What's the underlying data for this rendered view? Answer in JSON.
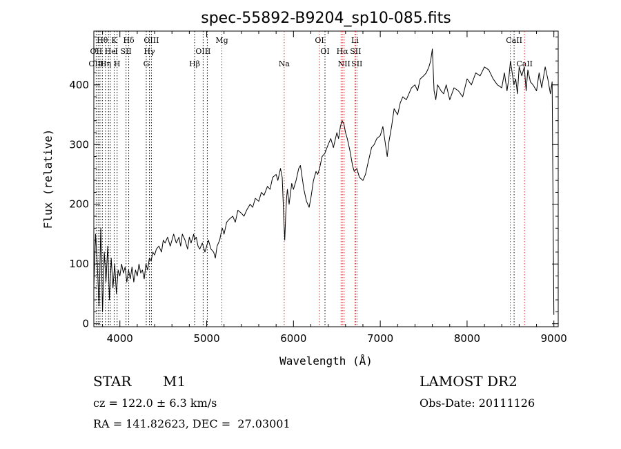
{
  "chart_data": {
    "type": "line",
    "title": "spec-55892-B9204_sp10-085.fits",
    "xlabel": "Wavelength (Å)",
    "ylabel": "Flux (relative)",
    "xlim": [
      3700,
      9050
    ],
    "ylim": [
      -5,
      490
    ],
    "xticks": [
      4000,
      5000,
      6000,
      7000,
      8000,
      9000
    ],
    "yticks": [
      0,
      100,
      200,
      300,
      400
    ],
    "grid": false,
    "series": [
      {
        "x": [
          3700,
          3720,
          3740,
          3760,
          3780,
          3800,
          3820,
          3840,
          3860,
          3880,
          3900,
          3920,
          3940,
          3960,
          3980,
          4000,
          4020,
          4040,
          4060,
          4080,
          4100,
          4120,
          4140,
          4160,
          4180,
          4200,
          4220,
          4240,
          4260,
          4280,
          4300,
          4320,
          4340,
          4360,
          4380,
          4400,
          4420,
          4450,
          4480,
          4500,
          4520,
          4550,
          4580,
          4600,
          4620,
          4650,
          4680,
          4700,
          4720,
          4750,
          4780,
          4800,
          4820,
          4850,
          4860,
          4880,
          4900,
          4920,
          4950,
          4980,
          5000,
          5020,
          5050,
          5080,
          5100,
          5120,
          5150,
          5170,
          5180,
          5200,
          5230,
          5260,
          5300,
          5330,
          5360,
          5400,
          5430,
          5460,
          5500,
          5530,
          5560,
          5600,
          5630,
          5660,
          5700,
          5730,
          5760,
          5800,
          5820,
          5850,
          5870,
          5880,
          5890,
          5900,
          5910,
          5920,
          5930,
          5950,
          5980,
          6000,
          6030,
          6060,
          6080,
          6100,
          6120,
          6150,
          6180,
          6200,
          6230,
          6260,
          6280,
          6300,
          6330,
          6360,
          6400,
          6430,
          6460,
          6500,
          6520,
          6540,
          6560,
          6580,
          6600,
          6620,
          6650,
          6680,
          6700,
          6730,
          6760,
          6800,
          6830,
          6860,
          6900,
          6930,
          6960,
          7000,
          7030,
          7060,
          7080,
          7100,
          7130,
          7160,
          7200,
          7230,
          7260,
          7300,
          7330,
          7360,
          7400,
          7430,
          7460,
          7500,
          7530,
          7560,
          7580,
          7600,
          7620,
          7640,
          7660,
          7700,
          7730,
          7760,
          7800,
          7850,
          7900,
          7950,
          8000,
          8050,
          8100,
          8150,
          8200,
          8250,
          8300,
          8350,
          8400,
          8430,
          8460,
          8480,
          8500,
          8520,
          8540,
          8560,
          8580,
          8600,
          8630,
          8660,
          8680,
          8700,
          8730,
          8760,
          8800,
          8830,
          8860,
          8900,
          8930,
          8960,
          8980,
          9000
        ],
        "values": [
          60,
          150,
          100,
          30,
          160,
          20,
          120,
          70,
          130,
          40,
          110,
          60,
          100,
          50,
          90,
          80,
          100,
          85,
          95,
          70,
          90,
          75,
          95,
          70,
          90,
          80,
          100,
          85,
          90,
          75,
          100,
          90,
          110,
          105,
          120,
          115,
          125,
          130,
          120,
          140,
          135,
          145,
          130,
          140,
          150,
          135,
          145,
          130,
          150,
          140,
          125,
          145,
          135,
          150,
          140,
          145,
          130,
          125,
          135,
          120,
          130,
          140,
          125,
          120,
          110,
          130,
          140,
          155,
          160,
          150,
          170,
          175,
          180,
          170,
          190,
          185,
          180,
          190,
          200,
          195,
          210,
          205,
          220,
          215,
          230,
          225,
          245,
          250,
          240,
          260,
          245,
          210,
          170,
          140,
          180,
          210,
          225,
          200,
          235,
          225,
          240,
          260,
          265,
          245,
          225,
          205,
          195,
          210,
          240,
          255,
          250,
          260,
          280,
          285,
          300,
          310,
          295,
          320,
          310,
          330,
          340,
          335,
          320,
          310,
          290,
          265,
          255,
          260,
          245,
          240,
          250,
          270,
          295,
          300,
          310,
          315,
          330,
          300,
          280,
          305,
          330,
          360,
          350,
          370,
          380,
          375,
          385,
          395,
          400,
          390,
          410,
          415,
          420,
          430,
          440,
          460,
          390,
          375,
          400,
          390,
          385,
          400,
          375,
          395,
          390,
          380,
          410,
          400,
          420,
          415,
          430,
          425,
          410,
          400,
          395,
          420,
          390,
          410,
          440,
          420,
          400,
          410,
          385,
          430,
          415,
          430,
          390,
          425,
          405,
          400,
          390,
          420,
          395,
          430,
          410,
          385,
          405,
          15
        ]
      }
    ],
    "line_labels": [
      {
        "label": "Hθ",
        "x": 3798,
        "row": 1,
        "color": "#000000"
      },
      {
        "label": "K",
        "x": 3934,
        "row": 1,
        "color": "#000000"
      },
      {
        "label": "Hδ",
        "x": 4102,
        "row": 1,
        "color": "#000000"
      },
      {
        "label": "OIII",
        "x": 4363,
        "row": 1,
        "color": "#000000"
      },
      {
        "label": "Mg",
        "x": 5175,
        "row": 1,
        "color": "#000000"
      },
      {
        "label": "OI",
        "x": 6300,
        "row": 1,
        "color": "#000000"
      },
      {
        "label": "Li",
        "x": 6708,
        "row": 1,
        "color": "#000000"
      },
      {
        "label": "CaII",
        "x": 8542,
        "row": 1,
        "color": "#000000"
      },
      {
        "label": "OII",
        "x": 3727,
        "row": 2,
        "color": "#000000"
      },
      {
        "label": "He",
        "x": 3889,
        "row": 2,
        "color": "#000000"
      },
      {
        "label": "I",
        "x": 3960,
        "row": 2,
        "color": "#000000"
      },
      {
        "label": "SII",
        "x": 4071,
        "row": 2,
        "color": "#000000"
      },
      {
        "label": "Hγ",
        "x": 4340,
        "row": 2,
        "color": "#000000"
      },
      {
        "label": "OIII",
        "x": 4959,
        "row": 2,
        "color": "#000000"
      },
      {
        "label": "OI",
        "x": 6363,
        "row": 2,
        "color": "#000000"
      },
      {
        "label": "Hα",
        "x": 6563,
        "row": 2,
        "color": "#000000"
      },
      {
        "label": "SII",
        "x": 6716,
        "row": 2,
        "color": "#000000"
      },
      {
        "label": "OIII",
        "x": 3727,
        "row": 3,
        "color": "#000000"
      },
      {
        "label": "Hη",
        "x": 3835,
        "row": 3,
        "color": "#000000"
      },
      {
        "label": "H",
        "x": 3968,
        "row": 3,
        "color": "#000000"
      },
      {
        "label": "G",
        "x": 4304,
        "row": 3,
        "color": "#000000"
      },
      {
        "label": "Hβ",
        "x": 4861,
        "row": 3,
        "color": "#000000"
      },
      {
        "label": "Na",
        "x": 5893,
        "row": 3,
        "color": "#000000"
      },
      {
        "label": "NII",
        "x": 6583,
        "row": 3,
        "color": "#000000"
      },
      {
        "label": "SII",
        "x": 6731,
        "row": 3,
        "color": "#000000"
      },
      {
        "label": "CaII",
        "x": 8662,
        "row": 3,
        "color": "#000000"
      }
    ],
    "line_markers": [
      {
        "x": 3727,
        "color": "#000000"
      },
      {
        "x": 3750,
        "color": "#000000"
      },
      {
        "x": 3771,
        "color": "#000000"
      },
      {
        "x": 3798,
        "color": "#000000"
      },
      {
        "x": 3835,
        "color": "#000000"
      },
      {
        "x": 3869,
        "color": "#000000"
      },
      {
        "x": 3889,
        "color": "#000000"
      },
      {
        "x": 3934,
        "color": "#000000"
      },
      {
        "x": 3968,
        "color": "#000000"
      },
      {
        "x": 4071,
        "color": "#000000"
      },
      {
        "x": 4102,
        "color": "#000000"
      },
      {
        "x": 4304,
        "color": "#000000"
      },
      {
        "x": 4340,
        "color": "#000000"
      },
      {
        "x": 4363,
        "color": "#000000"
      },
      {
        "x": 4861,
        "color": "#000000"
      },
      {
        "x": 4959,
        "color": "#000000"
      },
      {
        "x": 5007,
        "color": "#000000"
      },
      {
        "x": 5175,
        "color": "#d62728"
      },
      {
        "x": 5893,
        "color": "#d62728"
      },
      {
        "x": 6300,
        "color": "#d62728"
      },
      {
        "x": 6363,
        "color": "#000000"
      },
      {
        "x": 6548,
        "color": "#d62728"
      },
      {
        "x": 6563,
        "color": "#d62728"
      },
      {
        "x": 6583,
        "color": "#d62728"
      },
      {
        "x": 6708,
        "color": "#d62728"
      },
      {
        "x": 6716,
        "color": "#d62728"
      },
      {
        "x": 6731,
        "color": "#d62728"
      },
      {
        "x": 8498,
        "color": "#d62728"
      },
      {
        "x": 8542,
        "color": "#000000"
      },
      {
        "x": 8662,
        "color": "#d62728"
      }
    ]
  },
  "info": {
    "object_class": "STAR",
    "object_subclass": "M1",
    "survey": "LAMOST DR2",
    "cz": "cz = 122.0 ± 6.3 km/s",
    "obs_date": "Obs-Date: 20111126",
    "radec": "RA = 141.82623, DEC =  27.03001"
  }
}
